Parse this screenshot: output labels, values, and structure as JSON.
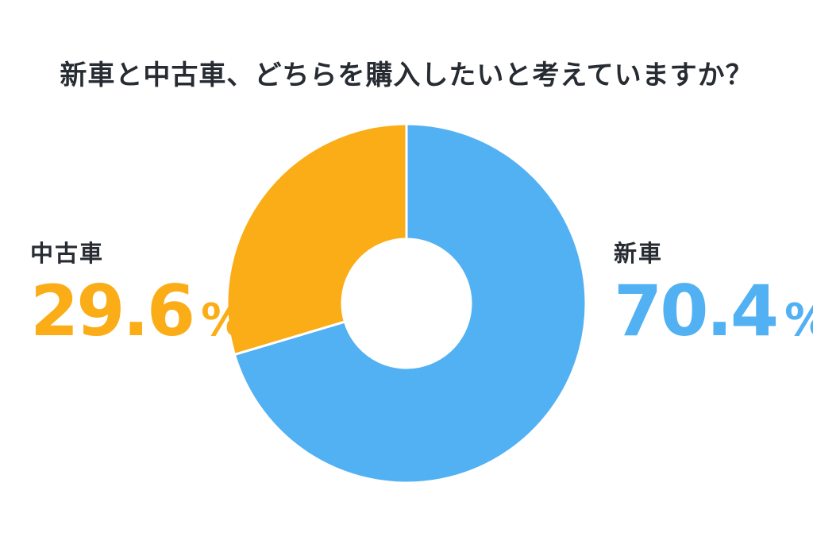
{
  "page": {
    "background": "#FFFFFF"
  },
  "chart_data": {
    "type": "pie",
    "subtype": "donut",
    "title": "新車と中古車、どちらを購入したいと考えていますか？",
    "title_color": "#272C33",
    "categories": [
      "新車",
      "中古車"
    ],
    "values": [
      70.4,
      29.6
    ],
    "unit": "%",
    "colors": [
      "#52B1F2",
      "#FBAD18"
    ],
    "label_text_color": "#272C33",
    "start_angle_deg": 0,
    "direction": "clockwise",
    "inner_radius_ratio": 0.36,
    "slice_gap_color": "#FFFFFF",
    "legend": "none",
    "labels_position": "left-right-sides"
  }
}
